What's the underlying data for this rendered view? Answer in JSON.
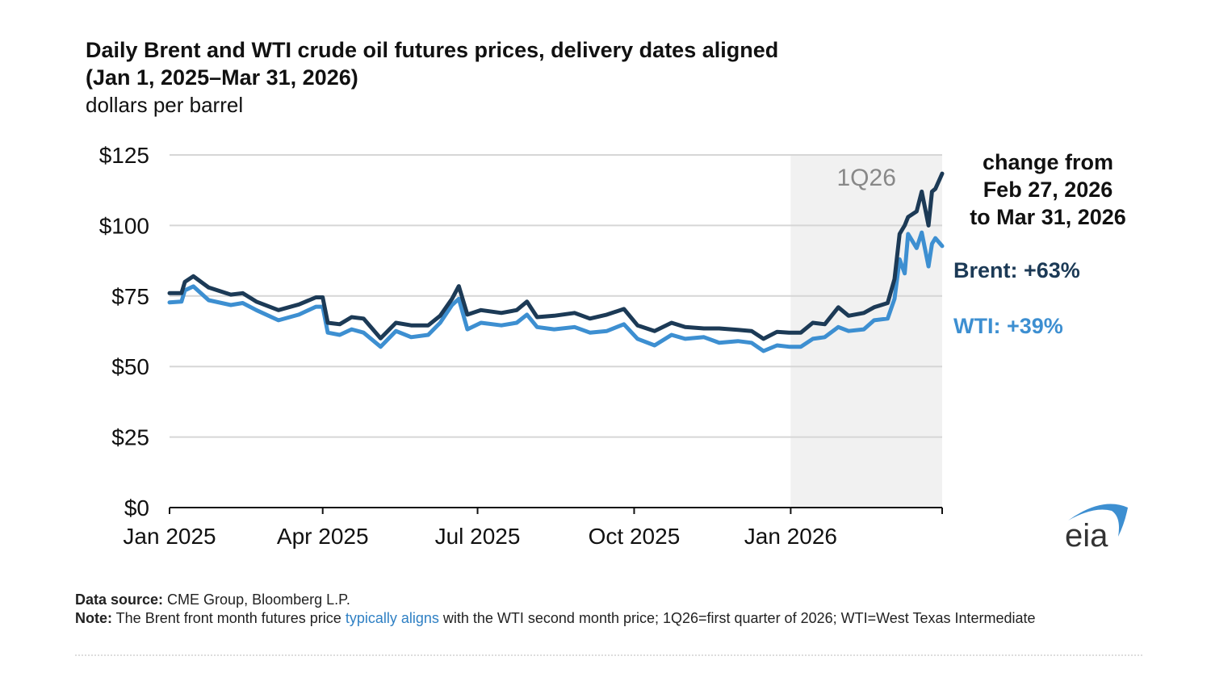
{
  "chart_data": {
    "type": "line",
    "title": "Daily Brent and WTI crude oil futures prices, delivery dates aligned (Jan 1, 2025–Mar 31, 2026)",
    "title_line1": "Daily Brent and WTI crude oil futures prices, delivery dates aligned",
    "title_line2": "(Jan 1, 2025–Mar 31, 2026)",
    "subtitle": "dollars per barrel",
    "ylim": [
      0,
      125
    ],
    "yticks": [
      0,
      25,
      50,
      75,
      100,
      125
    ],
    "ytick_labels": [
      "$0",
      "$25",
      "$50",
      "$75",
      "$100",
      "$125"
    ],
    "xlim": [
      "2025-01-01",
      "2026-03-31"
    ],
    "xticks": [
      "2025-01-01",
      "2025-04-01",
      "2025-07-01",
      "2025-10-01",
      "2026-01-01"
    ],
    "xtick_labels": [
      "Jan 2025",
      "Apr 2025",
      "Jul 2025",
      "Oct 2025",
      "Jan 2026"
    ],
    "grid": "horizontal",
    "shaded_region": {
      "label": "1Q26",
      "start": "2026-01-01",
      "end": "2026-03-31",
      "color": "#f1f1f1"
    },
    "x": [
      "2025-01-01",
      "2025-01-08",
      "2025-01-10",
      "2025-01-15",
      "2025-01-24",
      "2025-02-06",
      "2025-02-13",
      "2025-02-21",
      "2025-03-06",
      "2025-03-18",
      "2025-03-28",
      "2025-04-01",
      "2025-04-04",
      "2025-04-11",
      "2025-04-18",
      "2025-04-25",
      "2025-05-05",
      "2025-05-14",
      "2025-05-23",
      "2025-06-02",
      "2025-06-09",
      "2025-06-16",
      "2025-06-20",
      "2025-06-25",
      "2025-07-03",
      "2025-07-15",
      "2025-07-24",
      "2025-07-30",
      "2025-08-05",
      "2025-08-15",
      "2025-08-27",
      "2025-09-05",
      "2025-09-15",
      "2025-09-25",
      "2025-10-03",
      "2025-10-13",
      "2025-10-23",
      "2025-10-31",
      "2025-11-11",
      "2025-11-20",
      "2025-12-01",
      "2025-12-09",
      "2025-12-16",
      "2025-12-24",
      "2025-12-31",
      "2026-01-07",
      "2026-01-14",
      "2026-01-21",
      "2026-01-29",
      "2026-02-04",
      "2026-02-13",
      "2026-02-19",
      "2026-02-27",
      "2026-03-03",
      "2026-03-06",
      "2026-03-09",
      "2026-03-11",
      "2026-03-16",
      "2026-03-19",
      "2026-03-23",
      "2026-03-25",
      "2026-03-27",
      "2026-03-31"
    ],
    "series": [
      {
        "name": "Brent",
        "color": "#1c3a56",
        "values": [
          76,
          76,
          80,
          82,
          78,
          75.5,
          76,
          73,
          70,
          72,
          74.5,
          74.5,
          65.5,
          65,
          67.5,
          67,
          60,
          65.5,
          64.6,
          64.6,
          68,
          74,
          78.5,
          68.4,
          70,
          69,
          70,
          73,
          67.5,
          68,
          69,
          67,
          68.4,
          70.4,
          64.6,
          62.6,
          65.5,
          64,
          63.5,
          63.5,
          63,
          62.6,
          59.8,
          62.3,
          62,
          62,
          65.5,
          65,
          71,
          68,
          69,
          71,
          72.5,
          81,
          97,
          100,
          103,
          105,
          112,
          100,
          112,
          113,
          118.4
        ]
      },
      {
        "name": "WTI",
        "color": "#3d8fd1",
        "values": [
          72.7,
          73,
          77,
          78.4,
          73.5,
          71.8,
          72.5,
          70,
          66.4,
          68.4,
          71.2,
          71.2,
          62,
          61.2,
          63.2,
          62,
          57,
          62.6,
          60.4,
          61.2,
          65.5,
          71.8,
          74,
          63.2,
          65.5,
          64.6,
          65.5,
          68.4,
          64,
          63.2,
          64,
          62,
          62.6,
          65,
          59.8,
          57.5,
          61.2,
          59.8,
          60.4,
          58.4,
          59,
          58.4,
          55.5,
          57.5,
          57,
          57,
          59.8,
          60.4,
          64,
          62.6,
          63.2,
          66.4,
          67,
          74,
          88,
          83,
          97,
          92,
          97.5,
          85.5,
          93.5,
          95.5,
          92.7
        ]
      }
    ],
    "annotations": {
      "change_header": [
        "change from",
        "Feb 27, 2026",
        "to Mar 31, 2026"
      ],
      "brent_change": "Brent: +63%",
      "wti_change": "WTI: +39%"
    }
  },
  "logo": {
    "text": "eia",
    "arc_color": "#3d8fd1"
  },
  "footer": {
    "source_label": "Data source:",
    "source_text": " CME Group, Bloomberg L.P.",
    "note_label": "Note:",
    "note_before": " The Brent front month futures price ",
    "note_link": "typically aligns",
    "note_after": " with the WTI second month price; 1Q26=first quarter of 2026; WTI=West Texas Intermediate"
  }
}
